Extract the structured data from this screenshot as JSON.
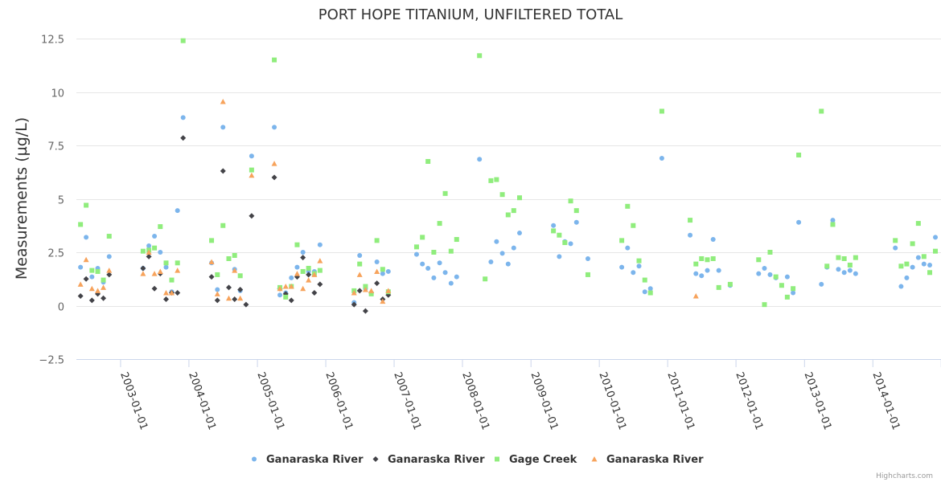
{
  "chart_data": {
    "type": "scatter",
    "title": "PORT HOPE TITANIUM, UNFILTERED TOTAL",
    "ylabel": "Measurements (µg/L)",
    "xlabel": "",
    "ylim": [
      -2.5,
      12.5
    ],
    "yticks": [
      -2.5,
      0,
      2.5,
      5,
      7.5,
      10,
      12.5
    ],
    "ytick_labels": [
      "−2.5",
      "0",
      "2.5",
      "5",
      "7.5",
      "10",
      "12.5"
    ],
    "xlim": [
      "2002-05-10",
      "2014-12-31"
    ],
    "xticks": [
      "2003-01-01",
      "2004-01-01",
      "2005-01-01",
      "2006-01-01",
      "2007-01-01",
      "2008-01-01",
      "2009-01-01",
      "2010-01-01",
      "2011-01-01",
      "2012-01-01",
      "2013-01-01",
      "2014-01-01",
      "2015-01-01"
    ],
    "xtick_labels": [
      "2003-01-01",
      "2004-01-01",
      "2005-01-01",
      "2006-01-01",
      "2007-01-01",
      "2008-01-01",
      "2009-01-01",
      "2010-01-01",
      "2011-01-01",
      "2012-01-01",
      "2013-01-01",
      "2014-01-01",
      "2015-01-01"
    ],
    "grid": "horizontal",
    "legend_position": "bottom-center",
    "series": [
      {
        "name": "Ganaraska River",
        "marker": "circle",
        "color": "#7cb5ec",
        "points": [
          [
            "2002-06-01",
            1.8
          ],
          [
            "2002-07-01",
            3.2
          ],
          [
            "2002-08-01",
            1.35
          ],
          [
            "2002-09-01",
            1.75
          ],
          [
            "2002-10-01",
            1.1
          ],
          [
            "2002-11-01",
            2.3
          ],
          [
            "2003-05-01",
            1.75
          ],
          [
            "2003-06-01",
            2.8
          ],
          [
            "2003-07-01",
            3.25
          ],
          [
            "2003-08-01",
            2.5
          ],
          [
            "2003-09-01",
            1.8
          ],
          [
            "2003-10-01",
            0.65
          ],
          [
            "2003-11-01",
            4.45
          ],
          [
            "2003-12-01",
            8.8
          ],
          [
            "2004-05-01",
            2.0
          ],
          [
            "2004-06-01",
            0.75
          ],
          [
            "2004-07-01",
            8.35
          ],
          [
            "2004-09-01",
            1.7
          ],
          [
            "2004-10-01",
            0.7
          ],
          [
            "2004-12-01",
            7.0
          ],
          [
            "2005-04-01",
            8.35
          ],
          [
            "2005-05-01",
            0.5
          ],
          [
            "2005-06-01",
            0.6
          ],
          [
            "2005-07-01",
            1.3
          ],
          [
            "2005-08-01",
            1.8
          ],
          [
            "2005-09-01",
            2.5
          ],
          [
            "2005-10-01",
            1.6
          ],
          [
            "2005-11-01",
            1.6
          ],
          [
            "2005-12-01",
            2.85
          ],
          [
            "2006-06-01",
            0.15
          ],
          [
            "2006-07-01",
            2.35
          ],
          [
            "2006-08-01",
            0.8
          ],
          [
            "2006-09-01",
            0.6
          ],
          [
            "2006-10-01",
            2.05
          ],
          [
            "2006-11-01",
            1.5
          ],
          [
            "2006-12-01",
            1.6
          ],
          [
            "2007-05-01",
            2.4
          ],
          [
            "2007-06-01",
            1.95
          ],
          [
            "2007-07-01",
            1.75
          ],
          [
            "2007-08-01",
            1.3
          ],
          [
            "2007-09-01",
            2.0
          ],
          [
            "2007-10-01",
            1.55
          ],
          [
            "2007-11-01",
            1.05
          ],
          [
            "2007-12-01",
            1.35
          ],
          [
            "2008-04-01",
            6.85
          ],
          [
            "2008-06-01",
            2.05
          ],
          [
            "2008-07-01",
            3.0
          ],
          [
            "2008-08-01",
            2.45
          ],
          [
            "2008-09-01",
            1.95
          ],
          [
            "2008-10-01",
            2.7
          ],
          [
            "2008-11-01",
            3.4
          ],
          [
            "2009-05-01",
            3.75
          ],
          [
            "2009-06-01",
            2.3
          ],
          [
            "2009-07-01",
            3.0
          ],
          [
            "2009-08-01",
            2.9
          ],
          [
            "2009-09-01",
            3.9
          ],
          [
            "2009-11-01",
            2.2
          ],
          [
            "2010-05-01",
            1.8
          ],
          [
            "2010-06-01",
            2.7
          ],
          [
            "2010-07-01",
            1.55
          ],
          [
            "2010-08-01",
            1.85
          ],
          [
            "2010-09-01",
            0.65
          ],
          [
            "2010-10-01",
            0.8
          ],
          [
            "2010-12-01",
            6.9
          ],
          [
            "2011-05-01",
            3.3
          ],
          [
            "2011-06-01",
            1.5
          ],
          [
            "2011-07-01",
            1.4
          ],
          [
            "2011-08-01",
            1.65
          ],
          [
            "2011-09-01",
            3.1
          ],
          [
            "2011-10-01",
            1.65
          ],
          [
            "2011-12-01",
            0.95
          ],
          [
            "2012-05-01",
            1.5
          ],
          [
            "2012-06-01",
            1.75
          ],
          [
            "2012-07-01",
            1.45
          ],
          [
            "2012-08-01",
            1.3
          ],
          [
            "2012-10-01",
            1.35
          ],
          [
            "2012-11-01",
            0.6
          ],
          [
            "2012-12-01",
            3.9
          ],
          [
            "2013-04-01",
            1.0
          ],
          [
            "2013-05-01",
            1.8
          ],
          [
            "2013-06-01",
            4.0
          ],
          [
            "2013-07-01",
            1.7
          ],
          [
            "2013-08-01",
            1.55
          ],
          [
            "2013-09-01",
            1.65
          ],
          [
            "2013-10-01",
            1.5
          ],
          [
            "2014-05-01",
            2.7
          ],
          [
            "2014-06-01",
            0.9
          ],
          [
            "2014-07-01",
            1.3
          ],
          [
            "2014-08-01",
            1.8
          ],
          [
            "2014-09-01",
            2.25
          ],
          [
            "2014-10-01",
            1.95
          ],
          [
            "2014-11-01",
            1.9
          ],
          [
            "2014-12-01",
            3.2
          ]
        ]
      },
      {
        "name": "Ganaraska River",
        "marker": "diamond",
        "color": "#434348",
        "points": [
          [
            "2002-06-01",
            0.45
          ],
          [
            "2002-07-01",
            1.25
          ],
          [
            "2002-08-01",
            0.25
          ],
          [
            "2002-09-01",
            0.55
          ],
          [
            "2002-10-01",
            0.35
          ],
          [
            "2002-11-01",
            1.45
          ],
          [
            "2003-05-01",
            1.75
          ],
          [
            "2003-06-01",
            2.3
          ],
          [
            "2003-07-01",
            0.8
          ],
          [
            "2003-08-01",
            1.5
          ],
          [
            "2003-09-01",
            0.3
          ],
          [
            "2003-10-01",
            0.6
          ],
          [
            "2003-11-01",
            0.6
          ],
          [
            "2003-12-01",
            7.85
          ],
          [
            "2004-05-01",
            1.35
          ],
          [
            "2004-06-01",
            0.25
          ],
          [
            "2004-07-01",
            6.3
          ],
          [
            "2004-08-01",
            0.85
          ],
          [
            "2004-09-01",
            0.3
          ],
          [
            "2004-10-01",
            0.75
          ],
          [
            "2004-11-01",
            0.05
          ],
          [
            "2004-12-01",
            4.2
          ],
          [
            "2005-04-01",
            6.0
          ],
          [
            "2005-05-01",
            0.8
          ],
          [
            "2005-06-01",
            0.55
          ],
          [
            "2005-07-01",
            0.25
          ],
          [
            "2005-08-01",
            1.35
          ],
          [
            "2005-09-01",
            2.25
          ],
          [
            "2005-10-01",
            1.45
          ],
          [
            "2005-11-01",
            0.6
          ],
          [
            "2005-12-01",
            1.0
          ],
          [
            "2006-06-01",
            0.05
          ],
          [
            "2006-07-01",
            0.7
          ],
          [
            "2006-08-01",
            -0.25
          ],
          [
            "2006-09-01",
            0.6
          ],
          [
            "2006-10-01",
            1.05
          ],
          [
            "2006-11-01",
            0.3
          ],
          [
            "2006-12-01",
            0.5
          ]
        ]
      },
      {
        "name": "Gage Creek",
        "marker": "square",
        "color": "#90ed7d",
        "points": [
          [
            "2002-06-01",
            3.8
          ],
          [
            "2002-07-01",
            4.7
          ],
          [
            "2002-08-01",
            1.65
          ],
          [
            "2002-09-01",
            1.6
          ],
          [
            "2002-10-01",
            1.2
          ],
          [
            "2002-11-01",
            3.25
          ],
          [
            "2003-05-01",
            2.55
          ],
          [
            "2003-06-01",
            2.6
          ],
          [
            "2003-07-01",
            2.7
          ],
          [
            "2003-08-01",
            3.7
          ],
          [
            "2003-09-01",
            2.0
          ],
          [
            "2003-10-01",
            1.2
          ],
          [
            "2003-11-01",
            2.0
          ],
          [
            "2003-12-01",
            12.4
          ],
          [
            "2004-05-01",
            3.05
          ],
          [
            "2004-06-01",
            1.45
          ],
          [
            "2004-07-01",
            3.75
          ],
          [
            "2004-08-01",
            2.2
          ],
          [
            "2004-09-01",
            2.35
          ],
          [
            "2004-10-01",
            1.4
          ],
          [
            "2004-12-01",
            6.35
          ],
          [
            "2005-04-01",
            11.5
          ],
          [
            "2005-05-01",
            0.85
          ],
          [
            "2005-06-01",
            0.4
          ],
          [
            "2005-07-01",
            0.9
          ],
          [
            "2005-08-01",
            2.85
          ],
          [
            "2005-09-01",
            1.6
          ],
          [
            "2005-10-01",
            1.75
          ],
          [
            "2005-11-01",
            1.5
          ],
          [
            "2005-12-01",
            1.65
          ],
          [
            "2006-06-01",
            0.7
          ],
          [
            "2006-07-01",
            1.95
          ],
          [
            "2006-08-01",
            0.9
          ],
          [
            "2006-09-01",
            0.55
          ],
          [
            "2006-10-01",
            3.05
          ],
          [
            "2006-11-01",
            1.7
          ],
          [
            "2006-12-01",
            0.65
          ],
          [
            "2007-05-01",
            2.75
          ],
          [
            "2007-06-01",
            3.2
          ],
          [
            "2007-07-01",
            6.75
          ],
          [
            "2007-08-01",
            2.5
          ],
          [
            "2007-09-01",
            3.85
          ],
          [
            "2007-10-01",
            5.25
          ],
          [
            "2007-11-01",
            2.55
          ],
          [
            "2007-12-01",
            3.1
          ],
          [
            "2008-04-01",
            11.7
          ],
          [
            "2008-05-01",
            1.25
          ],
          [
            "2008-06-01",
            5.85
          ],
          [
            "2008-07-01",
            5.9
          ],
          [
            "2008-08-01",
            5.2
          ],
          [
            "2008-09-01",
            4.25
          ],
          [
            "2008-10-01",
            4.45
          ],
          [
            "2008-11-01",
            5.05
          ],
          [
            "2009-05-01",
            3.5
          ],
          [
            "2009-06-01",
            3.3
          ],
          [
            "2009-07-01",
            2.95
          ],
          [
            "2009-08-01",
            4.9
          ],
          [
            "2009-09-01",
            4.45
          ],
          [
            "2009-11-01",
            1.45
          ],
          [
            "2010-05-01",
            3.05
          ],
          [
            "2010-06-01",
            4.65
          ],
          [
            "2010-07-01",
            3.75
          ],
          [
            "2010-08-01",
            2.1
          ],
          [
            "2010-09-01",
            1.2
          ],
          [
            "2010-10-01",
            0.6
          ],
          [
            "2010-12-01",
            9.1
          ],
          [
            "2011-05-01",
            4.0
          ],
          [
            "2011-06-01",
            1.95
          ],
          [
            "2011-07-01",
            2.2
          ],
          [
            "2011-08-01",
            2.15
          ],
          [
            "2011-09-01",
            2.2
          ],
          [
            "2011-10-01",
            0.85
          ],
          [
            "2011-12-01",
            1.0
          ],
          [
            "2012-05-01",
            2.15
          ],
          [
            "2012-06-01",
            0.05
          ],
          [
            "2012-07-01",
            2.5
          ],
          [
            "2012-08-01",
            1.35
          ],
          [
            "2012-09-01",
            0.95
          ],
          [
            "2012-10-01",
            0.4
          ],
          [
            "2012-11-01",
            0.8
          ],
          [
            "2012-12-01",
            7.05
          ],
          [
            "2013-04-01",
            9.1
          ],
          [
            "2013-05-01",
            1.85
          ],
          [
            "2013-06-01",
            3.8
          ],
          [
            "2013-07-01",
            2.25
          ],
          [
            "2013-08-01",
            2.2
          ],
          [
            "2013-09-01",
            1.9
          ],
          [
            "2013-10-01",
            2.25
          ],
          [
            "2014-05-01",
            3.05
          ],
          [
            "2014-06-01",
            1.85
          ],
          [
            "2014-07-01",
            1.95
          ],
          [
            "2014-08-01",
            2.9
          ],
          [
            "2014-09-01",
            3.85
          ],
          [
            "2014-10-01",
            2.3
          ],
          [
            "2014-11-01",
            1.55
          ],
          [
            "2014-12-01",
            2.55
          ]
        ]
      },
      {
        "name": "Ganaraska River",
        "marker": "triangle",
        "color": "#f7a35c",
        "points": [
          [
            "2002-06-01",
            1.0
          ],
          [
            "2002-07-01",
            2.15
          ],
          [
            "2002-08-01",
            0.8
          ],
          [
            "2002-09-01",
            0.7
          ],
          [
            "2002-10-01",
            0.85
          ],
          [
            "2002-11-01",
            1.65
          ],
          [
            "2003-05-01",
            1.5
          ],
          [
            "2003-06-01",
            2.5
          ],
          [
            "2003-07-01",
            1.5
          ],
          [
            "2003-08-01",
            1.6
          ],
          [
            "2003-09-01",
            0.6
          ],
          [
            "2003-10-01",
            0.6
          ],
          [
            "2003-11-01",
            1.65
          ],
          [
            "2004-05-01",
            2.05
          ],
          [
            "2004-06-01",
            0.55
          ],
          [
            "2004-07-01",
            9.55
          ],
          [
            "2004-08-01",
            0.35
          ],
          [
            "2004-09-01",
            1.65
          ],
          [
            "2004-10-01",
            0.35
          ],
          [
            "2004-12-01",
            6.1
          ],
          [
            "2005-04-01",
            6.65
          ],
          [
            "2005-05-01",
            0.8
          ],
          [
            "2005-06-01",
            0.9
          ],
          [
            "2005-07-01",
            0.9
          ],
          [
            "2005-08-01",
            1.5
          ],
          [
            "2005-09-01",
            0.8
          ],
          [
            "2005-10-01",
            1.2
          ],
          [
            "2005-11-01",
            1.45
          ],
          [
            "2005-12-01",
            2.1
          ],
          [
            "2006-06-01",
            0.6
          ],
          [
            "2006-07-01",
            1.45
          ],
          [
            "2006-08-01",
            0.75
          ],
          [
            "2006-09-01",
            0.7
          ],
          [
            "2006-10-01",
            1.6
          ],
          [
            "2006-11-01",
            0.2
          ],
          [
            "2006-12-01",
            0.7
          ],
          [
            "2011-06-01",
            0.45
          ]
        ]
      }
    ],
    "credits": "Highcharts.com"
  }
}
